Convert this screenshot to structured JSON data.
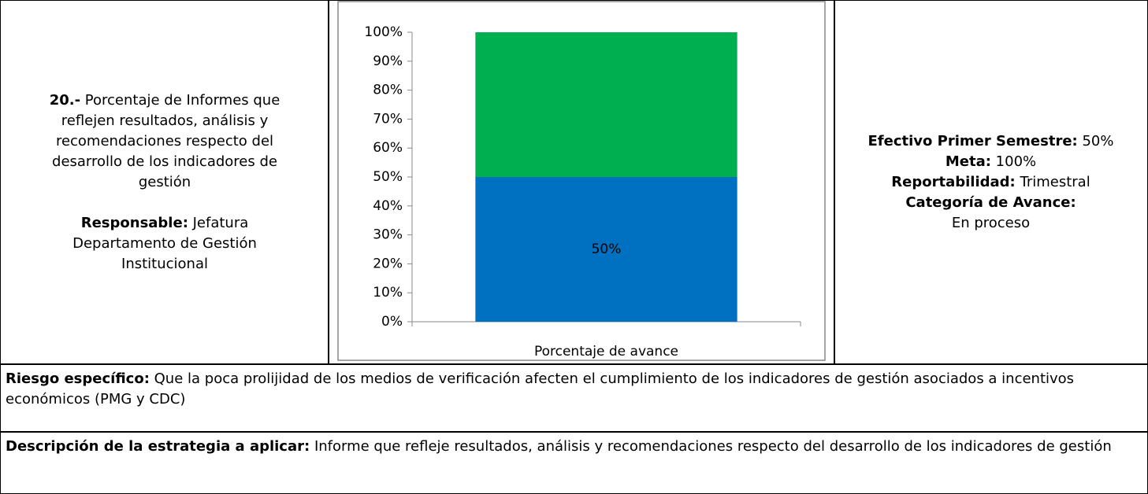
{
  "indicator": {
    "number": "20.-",
    "text": "Porcentaje de Informes que reflejen resultados, análisis y recomendaciones respecto del desarrollo de los indicadores de gestión",
    "responsible_label": "Responsable:",
    "responsible": "Jefatura Departamento de Gestión Institucional"
  },
  "chart_data": {
    "type": "bar",
    "stacked": true,
    "categories": [
      "Porcentaje de avance"
    ],
    "series": [
      {
        "color": "#0070c0",
        "values": [
          50
        ],
        "value_labels": [
          "50%"
        ]
      },
      {
        "color": "#00b050",
        "values": [
          50
        ]
      }
    ],
    "ylim": [
      0,
      100
    ],
    "yticks": [
      {
        "value": 0,
        "label": "0%"
      },
      {
        "value": 10,
        "label": "10%"
      },
      {
        "value": 20,
        "label": "20%"
      },
      {
        "value": 30,
        "label": "30%"
      },
      {
        "value": 40,
        "label": "40%"
      },
      {
        "value": 50,
        "label": "50%"
      },
      {
        "value": 60,
        "label": "60%"
      },
      {
        "value": 70,
        "label": "70%"
      },
      {
        "value": 80,
        "label": "80%"
      },
      {
        "value": 90,
        "label": "90%"
      },
      {
        "value": 100,
        "label": "100%"
      }
    ],
    "grid": false
  },
  "status": {
    "effective_label": "Efectivo Primer Semestre:",
    "effective": "50%",
    "goal_label": "Meta:",
    "goal": "100%",
    "reporting_label": "Reportabilidad:",
    "reporting": "Trimestral",
    "category_label": "Categoría de Avance:",
    "category": "En proceso"
  },
  "risk": {
    "label": "Riesgo específico:",
    "text": "Que la poca prolijidad de los medios de verificación afecten el cumplimiento de los indicadores de gestión asociados a incentivos económicos (PMG y CDC)"
  },
  "strategy": {
    "label": "Descripción de la estrategia a aplicar:",
    "text": "Informe que refleje resultados, análisis y recomendaciones respecto del desarrollo de los indicadores de gestión"
  }
}
